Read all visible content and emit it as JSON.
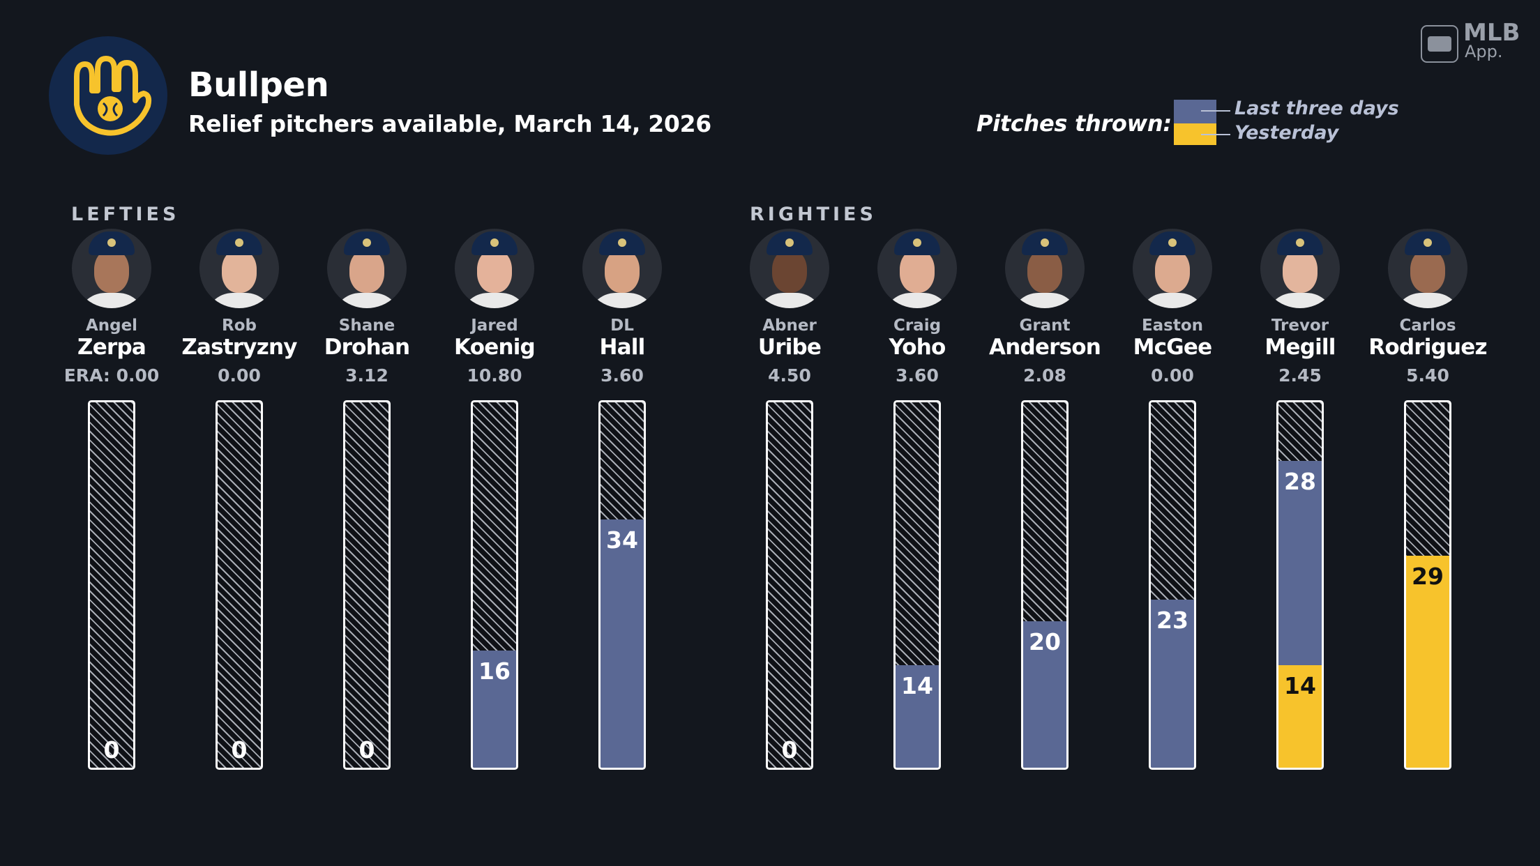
{
  "header": {
    "title": "Bullpen",
    "subtitle": "Relief pitchers available, March 14, 2026"
  },
  "legend": {
    "title": "Pitches thrown:",
    "last_three_days_label": "Last three days",
    "yesterday_label": "Yesterday",
    "last_three_days_color": "#5a6894",
    "yesterday_color": "#f7c32c"
  },
  "brand": {
    "mark": "MLB",
    "app": "App."
  },
  "sections": {
    "lefties": "LEFTIES",
    "righties": "RIGHTIES"
  },
  "scale_max_pitches": 50,
  "pitchers": [
    {
      "first": "Angel",
      "last": "Zerpa",
      "era": "ERA: 0.00",
      "group": "lefties",
      "last_three": 0,
      "yesterday": 0
    },
    {
      "first": "Rob",
      "last": "Zastryzny",
      "era": "0.00",
      "group": "lefties",
      "last_three": 0,
      "yesterday": 0
    },
    {
      "first": "Shane",
      "last": "Drohan",
      "era": "3.12",
      "group": "lefties",
      "last_three": 0,
      "yesterday": 0
    },
    {
      "first": "Jared",
      "last": "Koenig",
      "era": "10.80",
      "group": "lefties",
      "last_three": 16,
      "yesterday": 0
    },
    {
      "first": "DL",
      "last": "Hall",
      "era": "3.60",
      "group": "lefties",
      "last_three": 34,
      "yesterday": 0
    },
    {
      "first": "Abner",
      "last": "Uribe",
      "era": "4.50",
      "group": "righties",
      "last_three": 0,
      "yesterday": 0
    },
    {
      "first": "Craig",
      "last": "Yoho",
      "era": "3.60",
      "group": "righties",
      "last_three": 14,
      "yesterday": 0
    },
    {
      "first": "Grant",
      "last": "Anderson",
      "era": "2.08",
      "group": "righties",
      "last_three": 20,
      "yesterday": 0
    },
    {
      "first": "Easton",
      "last": "McGee",
      "era": "0.00",
      "group": "righties",
      "last_three": 23,
      "yesterday": 0
    },
    {
      "first": "Trevor",
      "last": "Megill",
      "era": "2.45",
      "group": "righties",
      "last_three": 28,
      "yesterday": 14
    },
    {
      "first": "Carlos",
      "last": "Rodriguez",
      "era": "5.40",
      "group": "righties",
      "last_three": 0,
      "yesterday": 29
    }
  ]
}
